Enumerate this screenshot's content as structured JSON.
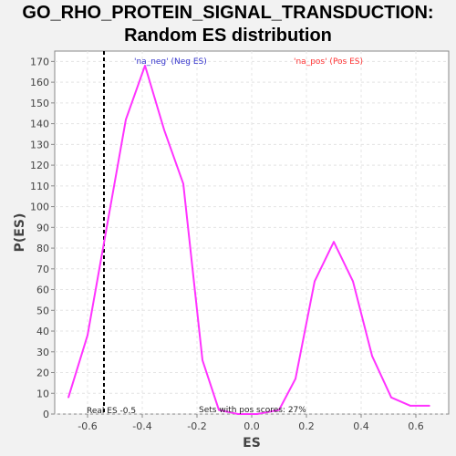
{
  "chart_data": {
    "type": "line",
    "title_lines": [
      "GO_RHO_PROTEIN_SIGNAL_TRANSDUCTION:",
      "Random ES distribution"
    ],
    "xlabel": "ES",
    "ylabel": "P(ES)",
    "xlim": [
      -0.72,
      0.72
    ],
    "ylim": [
      0,
      175
    ],
    "x_ticks": [
      -0.6,
      -0.4,
      -0.2,
      0.0,
      0.2,
      0.4,
      0.6
    ],
    "x_tick_labels": [
      "-0.6",
      "-0.4",
      "-0.2",
      "0.0",
      "0.2",
      "0.4",
      "0.6"
    ],
    "y_ticks": [
      0,
      10,
      20,
      30,
      40,
      50,
      60,
      70,
      80,
      90,
      100,
      110,
      120,
      130,
      140,
      150,
      160,
      170
    ],
    "y_tick_labels": [
      "0",
      "10",
      "20",
      "30",
      "40",
      "50",
      "60",
      "70",
      "80",
      "90",
      "100",
      "110",
      "120",
      "130",
      "140",
      "150",
      "160",
      "170"
    ],
    "grid": true,
    "series": [
      {
        "color": "#ff33ff",
        "x": [
          -0.67,
          -0.6,
          -0.46,
          -0.39,
          -0.32,
          -0.25,
          -0.18,
          -0.12,
          -0.05,
          0.02,
          0.1,
          0.16,
          0.23,
          0.3,
          0.37,
          0.44,
          0.51,
          0.58,
          0.65
        ],
        "y": [
          8,
          38,
          142,
          168,
          137,
          111,
          26,
          2,
          0,
          0,
          2,
          17,
          64,
          83,
          64,
          28,
          8,
          4,
          4
        ]
      }
    ],
    "real_es_line": {
      "x": -0.54,
      "color": "#000000",
      "style": "dashed"
    },
    "annotations": {
      "neg_label": "'na_neg' (Neg ES)",
      "neg_color": "#3333cc",
      "pos_label": "'na_pos' (Pos ES)",
      "pos_color": "#ff3333",
      "real_es": "Real ES -0.5",
      "pos_scores": "Sets with pos scores: 27%"
    }
  }
}
